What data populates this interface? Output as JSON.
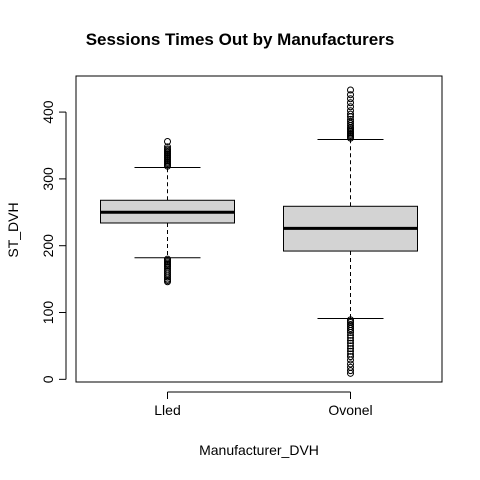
{
  "chart_data": {
    "type": "boxplot",
    "title": "Sessions Times Out by Manufacturers",
    "xlabel": "Manufacturer_DVH",
    "ylabel": "ST_DVH",
    "categories": [
      "Lled",
      "Ovonel"
    ],
    "y_ticks": [
      0,
      100,
      200,
      300,
      400
    ],
    "ylim": [
      -4,
      454
    ],
    "boxes": [
      {
        "name": "Lled",
        "whisker_low": 182,
        "q1": 234,
        "median": 250,
        "q3": 268,
        "whisker_high": 317,
        "outliers": [
          146,
          148,
          150,
          153,
          156,
          159,
          162,
          165,
          168,
          170,
          172,
          174,
          176,
          178,
          180,
          319,
          321,
          323,
          325,
          327,
          329,
          331,
          333,
          335,
          337,
          339,
          341,
          343,
          345,
          348,
          356
        ]
      },
      {
        "name": "Ovonel",
        "whisker_low": 91,
        "q1": 192,
        "median": 226,
        "q3": 259,
        "whisker_high": 359,
        "outliers": [
          9,
          13,
          18,
          23,
          29,
          34,
          38,
          42,
          46,
          50,
          54,
          58,
          62,
          66,
          70,
          73,
          76,
          79,
          82,
          85,
          87,
          89,
          361,
          363,
          365,
          367,
          369,
          371,
          373,
          375,
          377,
          380,
          383,
          386,
          389,
          393,
          397,
          402,
          408,
          414,
          420,
          426,
          433
        ]
      }
    ],
    "colors": {
      "box_fill": "#d3d3d3",
      "stroke": "#000000"
    }
  }
}
